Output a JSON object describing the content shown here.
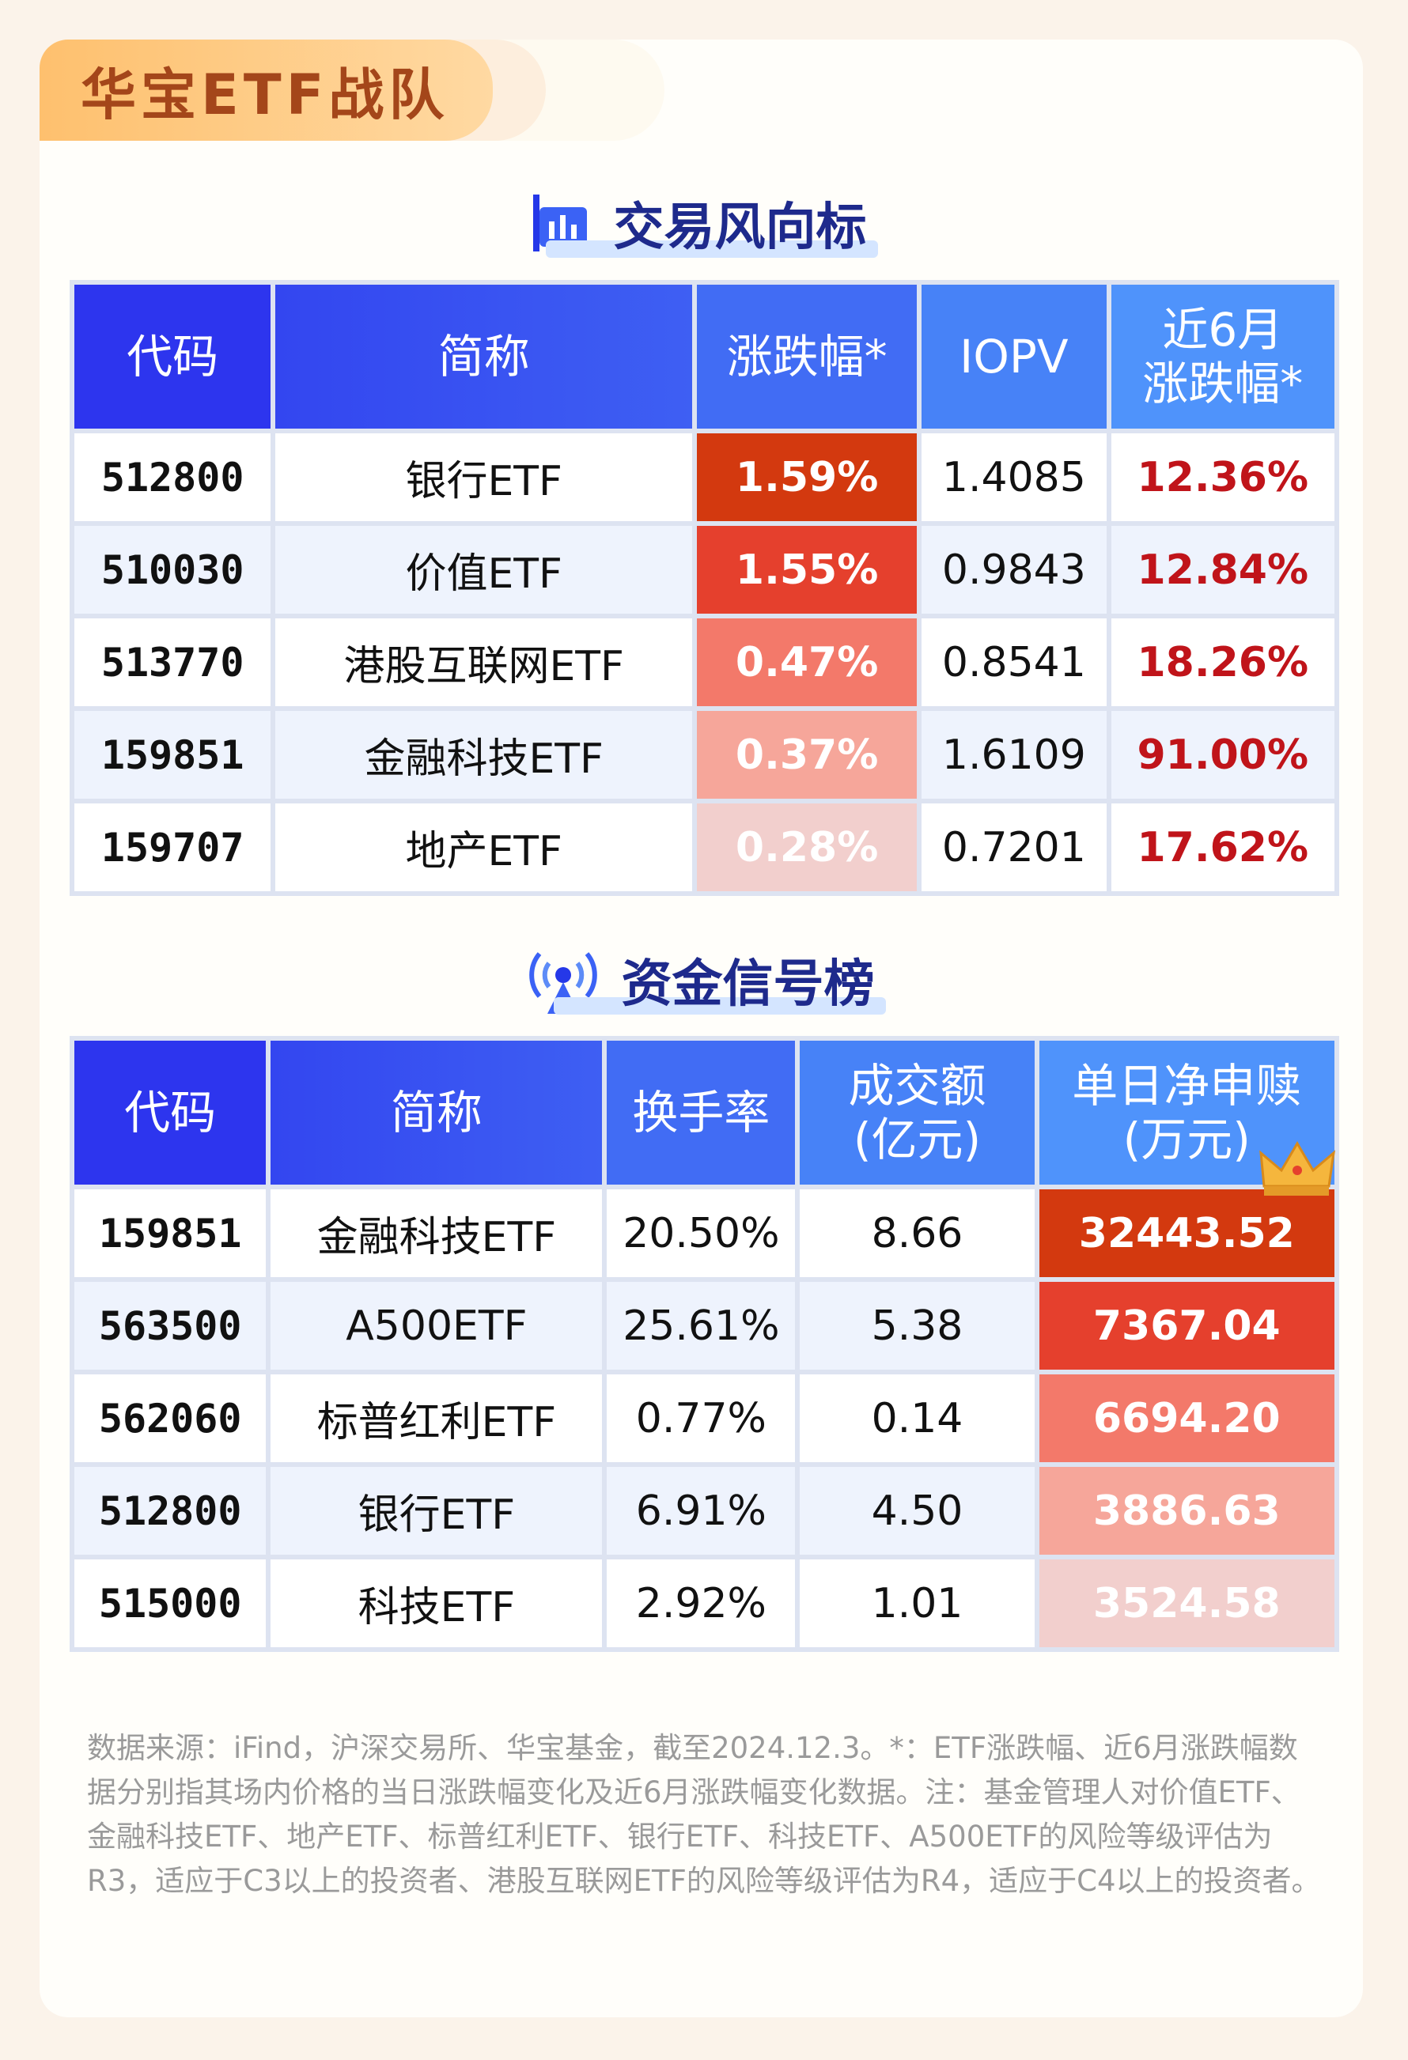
{
  "badge": "华宝ETF战队",
  "section1": {
    "title": "交易风向标",
    "icon": "bar-chart-icon",
    "headers": [
      "代码",
      "简称",
      "涨跌幅*",
      "IOPV",
      "近6月\n涨跌幅*"
    ],
    "rows": [
      {
        "code": "512800",
        "name": "银行ETF",
        "change": "1.59%",
        "iopv": "1.4085",
        "six_month": "12.36%",
        "color": "#d3390f"
      },
      {
        "code": "510030",
        "name": "价值ETF",
        "change": "1.55%",
        "iopv": "0.9843",
        "six_month": "12.84%",
        "color": "#e5402d"
      },
      {
        "code": "513770",
        "name": "港股互联网ETF",
        "change": "0.47%",
        "iopv": "0.8541",
        "six_month": "18.26%",
        "color": "#f3796a"
      },
      {
        "code": "159851",
        "name": "金融科技ETF",
        "change": "0.37%",
        "iopv": "1.6109",
        "six_month": "91.00%",
        "color": "#f6a69a"
      },
      {
        "code": "159707",
        "name": "地产ETF",
        "change": "0.28%",
        "iopv": "0.7201",
        "six_month": "17.62%",
        "color": "#f2cfcd"
      }
    ]
  },
  "section2": {
    "title": "资金信号榜",
    "icon": "broadcast-icon",
    "headers": [
      "代码",
      "简称",
      "换手率",
      "成交额\n(亿元)",
      "单日净申赎\n(万元)"
    ],
    "rows": [
      {
        "code": "159851",
        "name": "金融科技ETF",
        "turnover": "20.50%",
        "volume": "8.66",
        "net": "32443.52",
        "color": "#d3390f"
      },
      {
        "code": "563500",
        "name": "A500ETF",
        "turnover": "25.61%",
        "volume": "5.38",
        "net": "7367.04",
        "color": "#e5402d"
      },
      {
        "code": "562060",
        "name": "标普红利ETF",
        "turnover": "0.77%",
        "volume": "0.14",
        "net": "6694.20",
        "color": "#f3796a"
      },
      {
        "code": "512800",
        "name": "银行ETF",
        "turnover": "6.91%",
        "volume": "4.50",
        "net": "3886.63",
        "color": "#f6a69a"
      },
      {
        "code": "515000",
        "name": "科技ETF",
        "turnover": "2.92%",
        "volume": "1.01",
        "net": "3524.58",
        "color": "#f2cfcd"
      }
    ]
  },
  "footnote": "数据来源：iFind，沪深交易所、华宝基金，截至2024.12.3。*：ETF涨跌幅、近6月涨跌幅数据分别指其场内价格的当日涨跌幅变化及近6月涨跌幅变化数据。注：基金管理人对价值ETF、金融科技ETF、地产ETF、标普红利ETF、银行ETF、科技ETF、A500ETF的风险等级评估为R3，适应于C3以上的投资者、港股互联网ETF的风险等级评估为R4，适应于C4以上的投资者。"
}
